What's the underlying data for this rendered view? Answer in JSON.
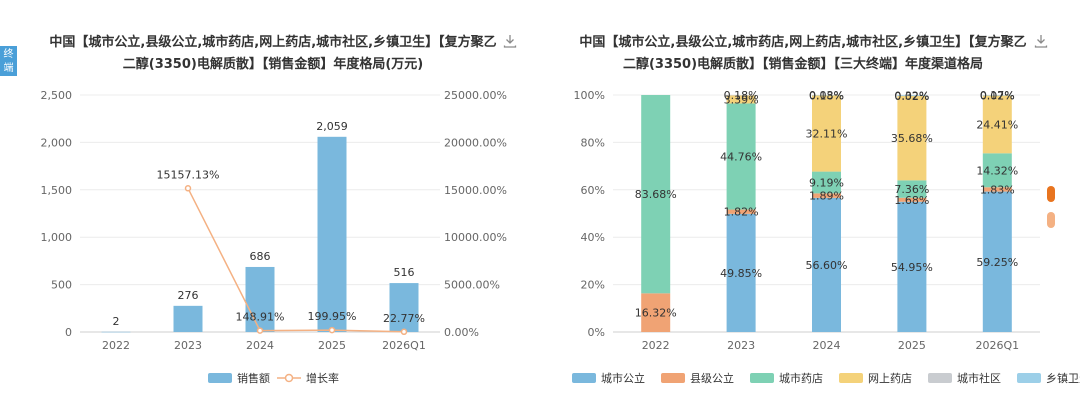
{
  "side_tab": "终端",
  "chart_data": [
    {
      "type": "bar",
      "title": "中国【城市公立,县级公立,城市药店,网上药店,城市社区,乡镇卫生】【复方聚乙二醇(3350)电解质散】【销售金额】年度格局(万元)",
      "categories": [
        "2022",
        "2023",
        "2024",
        "2025",
        "2026Q1"
      ],
      "series": [
        {
          "name": "销售额",
          "type": "bar",
          "values": [
            2,
            276,
            686,
            2059,
            516
          ],
          "labels": [
            "2",
            "276",
            "686",
            "2,059",
            "516"
          ]
        },
        {
          "name": "增长率",
          "type": "line",
          "values": [
            null,
            15157.13,
            148.91,
            199.95,
            22.77
          ],
          "labels": [
            "",
            "15157.13%",
            "148.91%",
            "199.95%",
            "22.77%"
          ]
        }
      ],
      "y_left": {
        "ticks": [
          "0",
          "500",
          "1,000",
          "1,500",
          "2,000",
          "2,500"
        ],
        "ylim": [
          0,
          2500
        ]
      },
      "y_right": {
        "ticks": [
          "0.00%",
          "5000.00%",
          "10000.00%",
          "15000.00%",
          "20000.00%",
          "25000.00%"
        ],
        "ylim": [
          0,
          25000
        ]
      },
      "legend": "bottom",
      "colors": {
        "bar": "#7ab8dd",
        "line": "#f4b183"
      }
    },
    {
      "type": "bar",
      "stacked": true,
      "title": "中国【城市公立,县级公立,城市药店,网上药店,城市社区,乡镇卫生】【复方聚乙二醇(3350)电解质散】【销售金额】【三大终端】年度渠道格局",
      "categories": [
        "2022",
        "2023",
        "2024",
        "2025",
        "2026Q1"
      ],
      "series": [
        {
          "name": "城市公立",
          "color": "#7ab8dd",
          "values": [
            0,
            49.85,
            56.6,
            54.95,
            59.25
          ],
          "labels": [
            "",
            "49.85%",
            "56.60%",
            "54.95%",
            "59.25%"
          ]
        },
        {
          "name": "县级公立",
          "color": "#f0a374",
          "values": [
            16.32,
            1.82,
            1.89,
            1.68,
            1.83
          ],
          "labels": [
            "16.32%",
            "1.82%",
            "1.89%",
            "1.68%",
            "1.83%"
          ]
        },
        {
          "name": "城市药店",
          "color": "#7ed1b4",
          "values": [
            83.68,
            44.76,
            9.19,
            7.36,
            14.32
          ],
          "labels": [
            "83.68%",
            "44.76%",
            "9.19%",
            "7.36%",
            "14.32%"
          ]
        },
        {
          "name": "网上药店",
          "color": "#f4d27a",
          "values": [
            0,
            3.39,
            32.11,
            35.68,
            24.41
          ],
          "labels": [
            "",
            "3.39%",
            "32.11%",
            "35.68%",
            "24.41%"
          ]
        },
        {
          "name": "城市社区",
          "color": "#c9ccd0",
          "values": [
            0,
            0.18,
            0.18,
            0.02,
            0.02
          ],
          "labels": [
            "",
            "0.18%",
            "0.18%",
            "0.02%",
            "0.02%"
          ]
        },
        {
          "name": "乡镇卫生",
          "color": "#9ccfe8",
          "values": [
            0,
            0,
            0.03,
            0.32,
            0.17
          ],
          "labels": [
            "",
            "",
            "0.03%",
            "0.32%",
            "0.17%"
          ]
        }
      ],
      "y_ticks": [
        "0%",
        "20%",
        "40%",
        "60%",
        "80%",
        "100%"
      ],
      "ylim": [
        0,
        100
      ],
      "legend": "bottom"
    }
  ]
}
